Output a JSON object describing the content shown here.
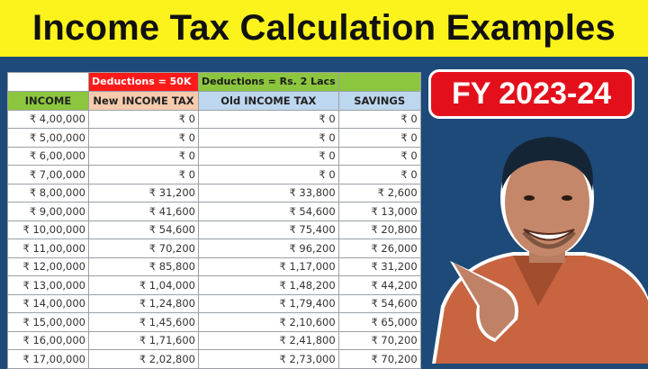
{
  "title": "Income Tax Calculation Examples",
  "badge": "FY 2023-24",
  "colors": {
    "title_band": "#fdf31c",
    "background": "#1d4a79",
    "badge": "#e3101b",
    "green_header": "#8cc63f",
    "red_header": "#ff1a1a",
    "peach_header": "#f8cbad",
    "blue_header": "#bdd7ee"
  },
  "table": {
    "group_headers": [
      "",
      "Deductions = 50K",
      "Deductions = Rs. 2 Lacs",
      ""
    ],
    "columns": [
      "INCOME",
      "New INCOME TAX",
      "Old INCOME TAX",
      "SAVINGS"
    ],
    "rows": [
      [
        "₹ 4,00,000",
        "₹ 0",
        "₹ 0",
        "₹ 0"
      ],
      [
        "₹ 5,00,000",
        "₹ 0",
        "₹ 0",
        "₹ 0"
      ],
      [
        "₹ 6,00,000",
        "₹ 0",
        "₹ 0",
        "₹ 0"
      ],
      [
        "₹ 7,00,000",
        "₹ 0",
        "₹ 0",
        "₹ 0"
      ],
      [
        "₹ 8,00,000",
        "₹ 31,200",
        "₹ 33,800",
        "₹ 2,600"
      ],
      [
        "₹ 9,00,000",
        "₹ 41,600",
        "₹ 54,600",
        "₹ 13,000"
      ],
      [
        "₹ 10,00,000",
        "₹ 54,600",
        "₹ 75,400",
        "₹ 20,800"
      ],
      [
        "₹ 11,00,000",
        "₹ 70,200",
        "₹ 96,200",
        "₹ 26,000"
      ],
      [
        "₹ 12,00,000",
        "₹ 85,800",
        "₹ 1,17,000",
        "₹ 31,200"
      ],
      [
        "₹ 13,00,000",
        "₹ 1,04,000",
        "₹ 1,48,200",
        "₹ 44,200"
      ],
      [
        "₹ 14,00,000",
        "₹ 1,24,800",
        "₹ 1,79,400",
        "₹ 54,600"
      ],
      [
        "₹ 15,00,000",
        "₹ 1,45,600",
        "₹ 2,10,600",
        "₹ 65,000"
      ],
      [
        "₹ 16,00,000",
        "₹ 1,71,600",
        "₹ 2,41,800",
        "₹ 70,200"
      ],
      [
        "₹ 17,00,000",
        "₹ 2,02,800",
        "₹ 2,73,000",
        "₹ 70,200"
      ]
    ]
  },
  "icons": {
    "person": "presenter-photo"
  }
}
